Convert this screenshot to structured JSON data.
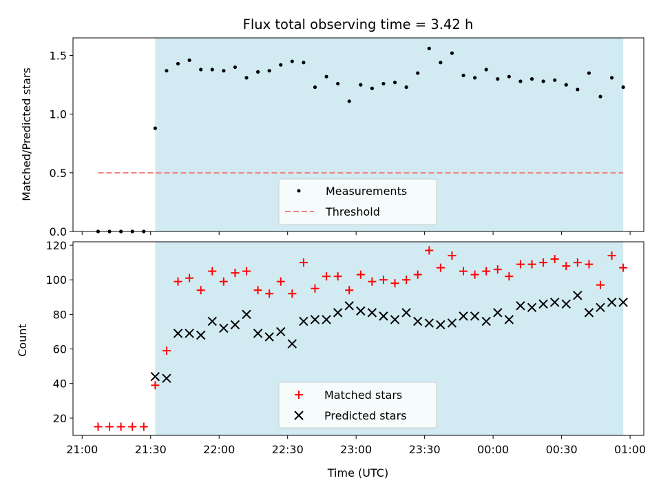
{
  "chart_data": [
    {
      "type": "scatter",
      "title": "Flux total observing time = 3.42 h",
      "xlabel": "",
      "ylabel": "Matched/Predicted stars",
      "x_axis": "time (minutes after 21:00 UTC), shared with lower panel",
      "xlim": [
        -4,
        246
      ],
      "ylim": [
        0,
        1.65
      ],
      "yticks": [
        0.0,
        0.5,
        1.0,
        1.5
      ],
      "ytick_labels": [
        "0.0",
        "0.5",
        "1.0",
        "1.5"
      ],
      "shaded_region": {
        "from": 32,
        "to": 237,
        "color": "#add8e6"
      },
      "grid": false,
      "legend_position": "lower center",
      "series": [
        {
          "name": "Measurements",
          "marker": "dot",
          "color": "#000000",
          "x": [
            7,
            12,
            17,
            22,
            27,
            32,
            37,
            42,
            47,
            52,
            57,
            62,
            67,
            72,
            77,
            82,
            87,
            92,
            97,
            102,
            107,
            112,
            117,
            122,
            127,
            132,
            137,
            142,
            147,
            152,
            157,
            162,
            167,
            172,
            177,
            182,
            187,
            192,
            197,
            202,
            207,
            212,
            217,
            222,
            227,
            232,
            237
          ],
          "y": [
            0.0,
            0.0,
            0.0,
            0.0,
            0.0,
            0.88,
            1.37,
            1.43,
            1.46,
            1.38,
            1.38,
            1.37,
            1.4,
            1.31,
            1.36,
            1.37,
            1.42,
            1.45,
            1.44,
            1.23,
            1.32,
            1.26,
            1.11,
            1.25,
            1.22,
            1.26,
            1.27,
            1.23,
            1.35,
            1.56,
            1.44,
            1.52,
            1.33,
            1.31,
            1.38,
            1.3,
            1.32,
            1.28,
            1.3,
            1.28,
            1.29,
            1.25,
            1.21,
            1.35,
            1.15,
            1.31,
            1.23
          ]
        },
        {
          "name": "Threshold",
          "line": "dashed",
          "color": "#f08080",
          "x": [
            7,
            237
          ],
          "y": [
            0.5,
            0.5
          ]
        }
      ]
    },
    {
      "type": "scatter",
      "title": "",
      "xlabel": "Time (UTC)",
      "ylabel": "Count",
      "xlim": [
        -4,
        246
      ],
      "xticks": [
        0,
        30,
        60,
        90,
        120,
        150,
        180,
        210,
        240
      ],
      "xtick_labels": [
        "21:00",
        "21:30",
        "22:00",
        "22:30",
        "23:00",
        "23:30",
        "00:00",
        "00:30",
        "01:00"
      ],
      "ylim": [
        10,
        122
      ],
      "yticks": [
        20,
        40,
        60,
        80,
        100,
        120
      ],
      "ytick_labels": [
        "20",
        "40",
        "60",
        "80",
        "100",
        "120"
      ],
      "shaded_region": {
        "from": 32,
        "to": 237,
        "color": "#add8e6"
      },
      "grid": false,
      "legend_position": "lower center",
      "series": [
        {
          "name": "Matched stars",
          "marker": "plus",
          "color": "#ff0000",
          "x": [
            7,
            12,
            17,
            22,
            27,
            32,
            37,
            42,
            47,
            52,
            57,
            62,
            67,
            72,
            77,
            82,
            87,
            92,
            97,
            102,
            107,
            112,
            117,
            122,
            127,
            132,
            137,
            142,
            147,
            152,
            157,
            162,
            167,
            172,
            177,
            182,
            187,
            192,
            197,
            202,
            207,
            212,
            217,
            222,
            227,
            232,
            237
          ],
          "y": [
            15,
            15,
            15,
            15,
            15,
            39,
            59,
            99,
            101,
            94,
            105,
            99,
            104,
            105,
            94,
            92,
            99,
            92,
            110,
            95,
            102,
            102,
            94,
            103,
            99,
            100,
            98,
            100,
            103,
            117,
            107,
            114,
            105,
            103,
            105,
            106,
            102,
            109,
            109,
            110,
            112,
            108,
            110,
            109,
            97,
            114,
            107
          ]
        },
        {
          "name": "Predicted stars",
          "marker": "x",
          "color": "#000000",
          "x": [
            32,
            37,
            42,
            47,
            52,
            57,
            62,
            67,
            72,
            77,
            82,
            87,
            92,
            97,
            102,
            107,
            112,
            117,
            122,
            127,
            132,
            137,
            142,
            147,
            152,
            157,
            162,
            167,
            172,
            177,
            182,
            187,
            192,
            197,
            202,
            207,
            212,
            217,
            222,
            227,
            232,
            237
          ],
          "y": [
            44,
            43,
            69,
            69,
            68,
            76,
            72,
            74,
            80,
            69,
            67,
            70,
            63,
            76,
            77,
            77,
            81,
            85,
            82,
            81,
            79,
            77,
            81,
            76,
            75,
            74,
            75,
            79,
            79,
            76,
            81,
            77,
            85,
            84,
            86,
            87,
            86,
            91,
            81,
            84,
            87,
            87
          ]
        }
      ]
    }
  ]
}
